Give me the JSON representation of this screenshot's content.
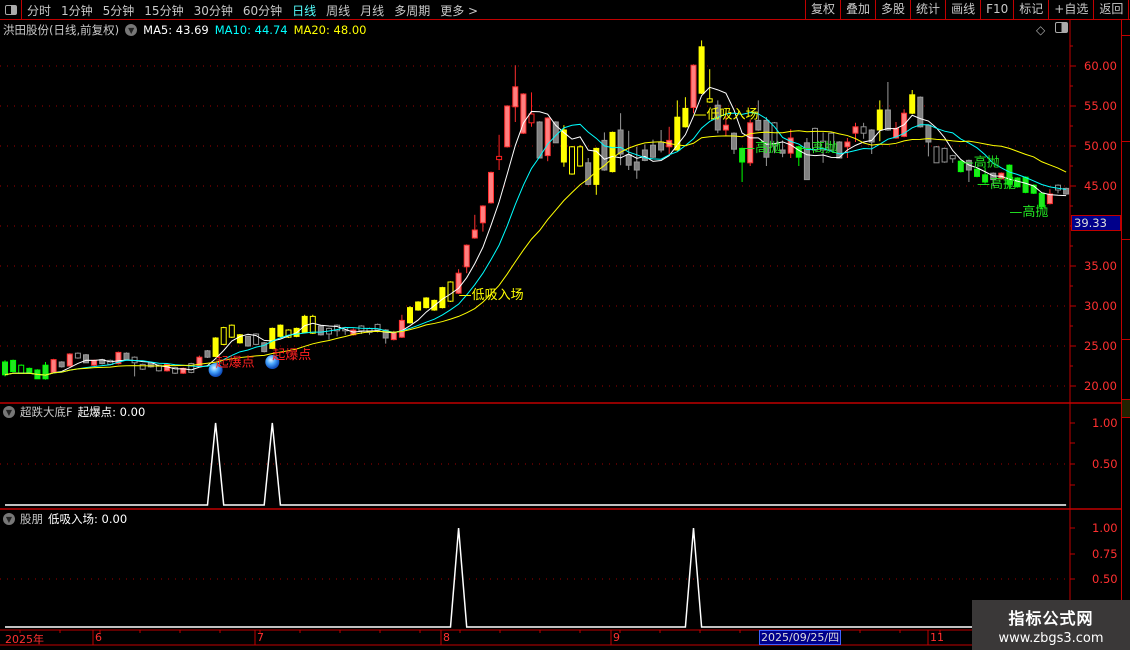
{
  "toolbar": {
    "periods": [
      "分时",
      "1分钟",
      "5分钟",
      "15分钟",
      "30分钟",
      "60分钟",
      "日线",
      "周线",
      "月线",
      "多周期",
      "更多 >"
    ],
    "active_period": "日线",
    "actions": [
      "复权",
      "叠加",
      "多股",
      "统计",
      "画线",
      "F10",
      "标记",
      "+自选",
      "返回"
    ]
  },
  "main": {
    "title": "洪田股份(日线,前复权)",
    "ma5": "MA5: 43.69",
    "ma10": "MA10: 44.74",
    "ma20": "MA20: 48.00",
    "price_ticks": [
      "60.00",
      "55.00",
      "50.00",
      "45.00",
      "35.00",
      "30.00",
      "25.00",
      "20.00"
    ],
    "cursor_price": "39.33"
  },
  "panels": [
    {
      "name": "超跌大底F",
      "series": "起爆点: 0.00",
      "ticks": [
        "1.00",
        "0.50"
      ]
    },
    {
      "name": "股朋",
      "series": "低吸入场: 0.00",
      "ticks": [
        "1.00",
        "0.75",
        "0.50"
      ]
    }
  ],
  "date_axis": {
    "labels": [
      "2025年",
      "6",
      "7",
      "8",
      "9",
      "11"
    ],
    "cursor_date": "2025/09/25/四"
  },
  "watermark": {
    "line1": "指标公式网",
    "line2": "www.zbgs3.com"
  },
  "colors": {
    "ma5": "#ffffff",
    "ma10": "#00ffff",
    "ma20": "#ffff00",
    "axis": "#ff3030",
    "grid": "#a00000",
    "up": "#ff8080",
    "down": "#22e622",
    "signal": "#ffff00"
  },
  "chart_data": {
    "type": "candlestick",
    "yaxis_range": [
      20,
      62.5
    ],
    "candles": [
      [
        23.0,
        23.2,
        21.2,
        21.4,
        "g"
      ],
      [
        23.2,
        23.3,
        21.8,
        21.8,
        "g"
      ],
      [
        22.6,
        22.7,
        21.6,
        21.6,
        "gh"
      ],
      [
        22.2,
        22.3,
        21.5,
        21.6,
        "g"
      ],
      [
        22.0,
        22.1,
        20.9,
        20.9,
        "g"
      ],
      [
        22.6,
        23.0,
        20.8,
        20.9,
        "g"
      ],
      [
        21.7,
        23.4,
        21.6,
        23.3,
        "s"
      ],
      [
        23.0,
        23.1,
        22.3,
        22.4,
        "k"
      ],
      [
        22.5,
        24.1,
        22.4,
        24.0,
        "s"
      ],
      [
        24.1,
        24.2,
        23.4,
        23.5,
        "kh"
      ],
      [
        23.9,
        24.0,
        22.9,
        22.9,
        "k"
      ],
      [
        22.6,
        23.3,
        22.5,
        23.2,
        "s"
      ],
      [
        23.3,
        23.4,
        22.7,
        22.8,
        "k"
      ],
      [
        23.2,
        23.3,
        22.6,
        22.7,
        "kh"
      ],
      [
        22.8,
        24.3,
        22.7,
        24.2,
        "s"
      ],
      [
        24.1,
        24.2,
        23.2,
        23.3,
        "k"
      ],
      [
        23.6,
        23.7,
        21.2,
        22.9,
        "kh"
      ],
      [
        22.7,
        22.8,
        22.0,
        22.1,
        "kh"
      ],
      [
        22.9,
        23.0,
        22.3,
        22.4,
        "k"
      ],
      [
        22.6,
        22.7,
        21.8,
        21.9,
        "kh"
      ],
      [
        21.9,
        22.8,
        21.8,
        22.7,
        "s"
      ],
      [
        22.3,
        22.4,
        21.5,
        21.6,
        "kh"
      ],
      [
        21.6,
        22.3,
        21.5,
        22.2,
        "s"
      ],
      [
        22.8,
        22.9,
        21.6,
        21.7,
        "kh"
      ],
      [
        22.5,
        23.8,
        22.4,
        23.6,
        "s"
      ],
      [
        24.4,
        24.5,
        23.5,
        23.6,
        "k"
      ],
      [
        23.7,
        26.1,
        23.6,
        26.0,
        "y"
      ],
      [
        25.2,
        27.4,
        25.1,
        27.3,
        "yh"
      ],
      [
        26.1,
        27.7,
        26.0,
        27.6,
        "yh"
      ],
      [
        25.4,
        26.5,
        25.3,
        26.4,
        "y"
      ],
      [
        26.2,
        26.3,
        24.9,
        25.0,
        "k"
      ],
      [
        26.5,
        26.6,
        25.1,
        25.2,
        "kh"
      ],
      [
        25.4,
        25.5,
        24.2,
        24.3,
        "k"
      ],
      [
        24.7,
        27.3,
        24.6,
        27.2,
        "y"
      ],
      [
        26.2,
        27.7,
        26.1,
        27.6,
        "y"
      ],
      [
        26.1,
        27.1,
        26.0,
        27.0,
        "yh"
      ],
      [
        26.2,
        27.3,
        26.1,
        27.2,
        "y"
      ],
      [
        26.7,
        28.9,
        26.6,
        28.7,
        "y"
      ],
      [
        26.6,
        28.9,
        26.5,
        28.7,
        "yh"
      ],
      [
        27.5,
        27.6,
        26.3,
        26.4,
        "k"
      ],
      [
        27.2,
        27.3,
        25.8,
        26.5,
        "kh"
      ],
      [
        27.6,
        27.7,
        26.2,
        26.9,
        "kh"
      ],
      [
        27.3,
        27.4,
        26.4,
        26.9,
        "kh"
      ],
      [
        26.4,
        27.2,
        26.3,
        27.0,
        "s"
      ],
      [
        27.5,
        27.6,
        26.5,
        26.9,
        "kh"
      ],
      [
        27.2,
        27.3,
        26.4,
        26.7,
        "kh"
      ],
      [
        27.7,
        27.8,
        26.7,
        27.0,
        "kh"
      ],
      [
        27.0,
        27.1,
        25.3,
        26.0,
        "k"
      ],
      [
        25.8,
        26.9,
        25.7,
        26.7,
        "s"
      ],
      [
        26.1,
        28.9,
        26.0,
        28.2,
        "s"
      ],
      [
        27.9,
        30.0,
        27.8,
        29.8,
        "y"
      ],
      [
        29.5,
        30.6,
        29.4,
        30.5,
        "y"
      ],
      [
        29.8,
        31.1,
        29.7,
        31.0,
        "y"
      ],
      [
        29.5,
        30.8,
        29.4,
        30.7,
        "y"
      ],
      [
        29.8,
        32.4,
        29.7,
        32.3,
        "y"
      ],
      [
        30.6,
        33.1,
        30.5,
        33.0,
        "yh"
      ],
      [
        31.6,
        34.6,
        31.5,
        34.1,
        "s"
      ],
      [
        34.9,
        37.7,
        34.1,
        37.6,
        "s"
      ],
      [
        38.5,
        41.4,
        38.4,
        39.5,
        "s"
      ],
      [
        40.4,
        42.6,
        39.3,
        42.5,
        "s"
      ],
      [
        42.9,
        46.8,
        42.8,
        46.7,
        "s"
      ],
      [
        48.3,
        51.4,
        47.0,
        48.7,
        "rh"
      ],
      [
        49.9,
        55.1,
        49.8,
        55.0,
        "s"
      ],
      [
        54.9,
        60.1,
        53.0,
        57.4,
        "s"
      ],
      [
        51.6,
        56.6,
        51.5,
        56.5,
        "s"
      ],
      [
        52.9,
        56.7,
        52.4,
        54.0,
        "rh"
      ],
      [
        53.0,
        53.1,
        48.5,
        48.5,
        "k"
      ],
      [
        48.8,
        53.6,
        48.1,
        53.5,
        "s"
      ],
      [
        53.0,
        53.1,
        50.4,
        50.4,
        "k"
      ],
      [
        48.0,
        52.6,
        47.4,
        52.0,
        "y"
      ],
      [
        46.5,
        50.0,
        46.4,
        49.9,
        "yh"
      ],
      [
        47.5,
        50.1,
        47.4,
        49.9,
        "yh"
      ],
      [
        47.9,
        48.5,
        45.1,
        45.2,
        "k"
      ],
      [
        45.2,
        49.8,
        43.9,
        49.7,
        "y"
      ],
      [
        50.7,
        51.7,
        46.9,
        47.0,
        "k"
      ],
      [
        46.8,
        51.8,
        46.7,
        51.7,
        "y"
      ],
      [
        52.0,
        54.1,
        47.6,
        49.0,
        "k"
      ],
      [
        48.9,
        51.9,
        47.0,
        47.6,
        "k"
      ],
      [
        48.0,
        49.9,
        45.9,
        47.0,
        "k"
      ],
      [
        49.5,
        50.2,
        48.1,
        48.2,
        "k"
      ],
      [
        50.1,
        50.8,
        48.5,
        48.6,
        "k"
      ],
      [
        50.5,
        52.0,
        49.2,
        49.5,
        "k"
      ],
      [
        49.9,
        52.4,
        48.9,
        50.7,
        "s"
      ],
      [
        49.5,
        55.7,
        49.4,
        53.6,
        "y"
      ],
      [
        52.4,
        56.1,
        52.3,
        54.7,
        "y"
      ],
      [
        54.8,
        60.2,
        54.1,
        60.1,
        "s"
      ],
      [
        56.6,
        63.2,
        56.5,
        62.4,
        "y"
      ],
      [
        55.5,
        59.6,
        55.4,
        55.9,
        "yh"
      ],
      [
        55.1,
        55.7,
        51.6,
        52.0,
        "k"
      ],
      [
        52.0,
        53.7,
        51.2,
        52.6,
        "s"
      ],
      [
        51.6,
        51.7,
        49.0,
        49.6,
        "k"
      ],
      [
        49.7,
        49.8,
        45.5,
        48.0,
        "g"
      ],
      [
        47.9,
        53.3,
        47.5,
        52.9,
        "s"
      ],
      [
        53.2,
        55.7,
        51.9,
        52.0,
        "k"
      ],
      [
        53.2,
        53.6,
        47.5,
        48.6,
        "k"
      ],
      [
        52.9,
        53.0,
        49.1,
        50.0,
        "kh"
      ],
      [
        49.5,
        50.7,
        48.6,
        49.1,
        "k"
      ],
      [
        49.1,
        52.1,
        48.5,
        51.0,
        "s"
      ],
      [
        49.9,
        50.0,
        47.5,
        48.6,
        "g"
      ],
      [
        50.4,
        51.0,
        45.8,
        45.8,
        "k"
      ],
      [
        52.2,
        52.3,
        49.4,
        49.5,
        "kh"
      ],
      [
        50.6,
        51.7,
        47.9,
        49.5,
        "kh"
      ],
      [
        51.6,
        51.7,
        49.4,
        49.5,
        "kh"
      ],
      [
        50.5,
        50.6,
        48.5,
        48.5,
        "k"
      ],
      [
        49.9,
        51.0,
        48.5,
        50.5,
        "s"
      ],
      [
        51.6,
        52.9,
        50.5,
        52.4,
        "s"
      ],
      [
        52.4,
        52.9,
        50.9,
        51.6,
        "kh"
      ],
      [
        52.0,
        52.1,
        49.0,
        50.5,
        "k"
      ],
      [
        52.0,
        55.7,
        50.6,
        54.5,
        "y"
      ],
      [
        54.5,
        58.0,
        51.9,
        52.0,
        "k"
      ],
      [
        51.0,
        53.0,
        50.9,
        52.2,
        "s"
      ],
      [
        51.2,
        54.6,
        51.1,
        54.1,
        "s"
      ],
      [
        54.1,
        57.0,
        54.0,
        56.4,
        "y"
      ],
      [
        56.1,
        56.2,
        52.3,
        52.4,
        "k"
      ],
      [
        52.6,
        52.7,
        48.7,
        50.5,
        "k"
      ],
      [
        49.9,
        50.0,
        47.9,
        47.9,
        "kh"
      ],
      [
        49.7,
        49.8,
        47.9,
        48.0,
        "kh"
      ],
      [
        48.8,
        48.9,
        47.9,
        48.4,
        "kh"
      ],
      [
        48.1,
        48.2,
        46.7,
        46.8,
        "g"
      ],
      [
        48.2,
        48.3,
        45.5,
        47.0,
        "k"
      ],
      [
        47.1,
        47.2,
        46.1,
        46.2,
        "g"
      ],
      [
        46.4,
        47.3,
        45.3,
        45.5,
        "g"
      ],
      [
        46.6,
        46.7,
        45.0,
        45.8,
        "k"
      ],
      [
        45.9,
        46.7,
        45.8,
        46.6,
        "s"
      ],
      [
        47.6,
        47.7,
        44.6,
        45.2,
        "g"
      ],
      [
        46.0,
        46.1,
        44.8,
        44.9,
        "g"
      ],
      [
        46.1,
        46.2,
        44.1,
        44.2,
        "g"
      ],
      [
        45.1,
        45.2,
        44.0,
        44.1,
        "g"
      ],
      [
        44.1,
        44.2,
        42.2,
        42.4,
        "g"
      ],
      [
        42.8,
        44.6,
        42.7,
        44.0,
        "s"
      ],
      [
        45.1,
        45.2,
        44.1,
        44.5,
        "kh"
      ],
      [
        44.7,
        44.8,
        43.9,
        44.0,
        "k"
      ]
    ],
    "moving_averages": [
      {
        "name": "MA5",
        "period": 5
      },
      {
        "name": "MA10",
        "period": 10
      },
      {
        "name": "MA20",
        "period": 20
      }
    ],
    "annotations": [
      {
        "text": "起爆点",
        "index": 26,
        "price": 23.2,
        "color": "#ff2020",
        "marker": "ball",
        "marker_price": 22.0
      },
      {
        "text": "起爆点",
        "index": 33,
        "price": 24.1,
        "color": "#ff2020",
        "marker": "ball",
        "marker_price": 23.0
      },
      {
        "text": "—低吸入场",
        "index": 56,
        "price": 31.6,
        "color": "#ffff00"
      },
      {
        "text": "—低吸入场",
        "index": 85,
        "price": 54.2,
        "color": "#ffff00"
      },
      {
        "text": "—高抛",
        "index": 91,
        "price": 50.0,
        "color": "#22e622"
      },
      {
        "text": "—高抛",
        "index": 98,
        "price": 50.0,
        "color": "#22e622"
      },
      {
        "text": "—高抛",
        "index": 118,
        "price": 48.2,
        "color": "#22e622"
      },
      {
        "text": "—高抛",
        "index": 120,
        "price": 47.4,
        "color": "#22e622"
      },
      {
        "text": "—高抛",
        "index": 124,
        "price": 47.6,
        "color": "#22e622"
      }
    ],
    "indicator_signals": {
      "起爆点": [
        26,
        33
      ],
      "低吸入场": [
        56,
        85
      ]
    }
  }
}
